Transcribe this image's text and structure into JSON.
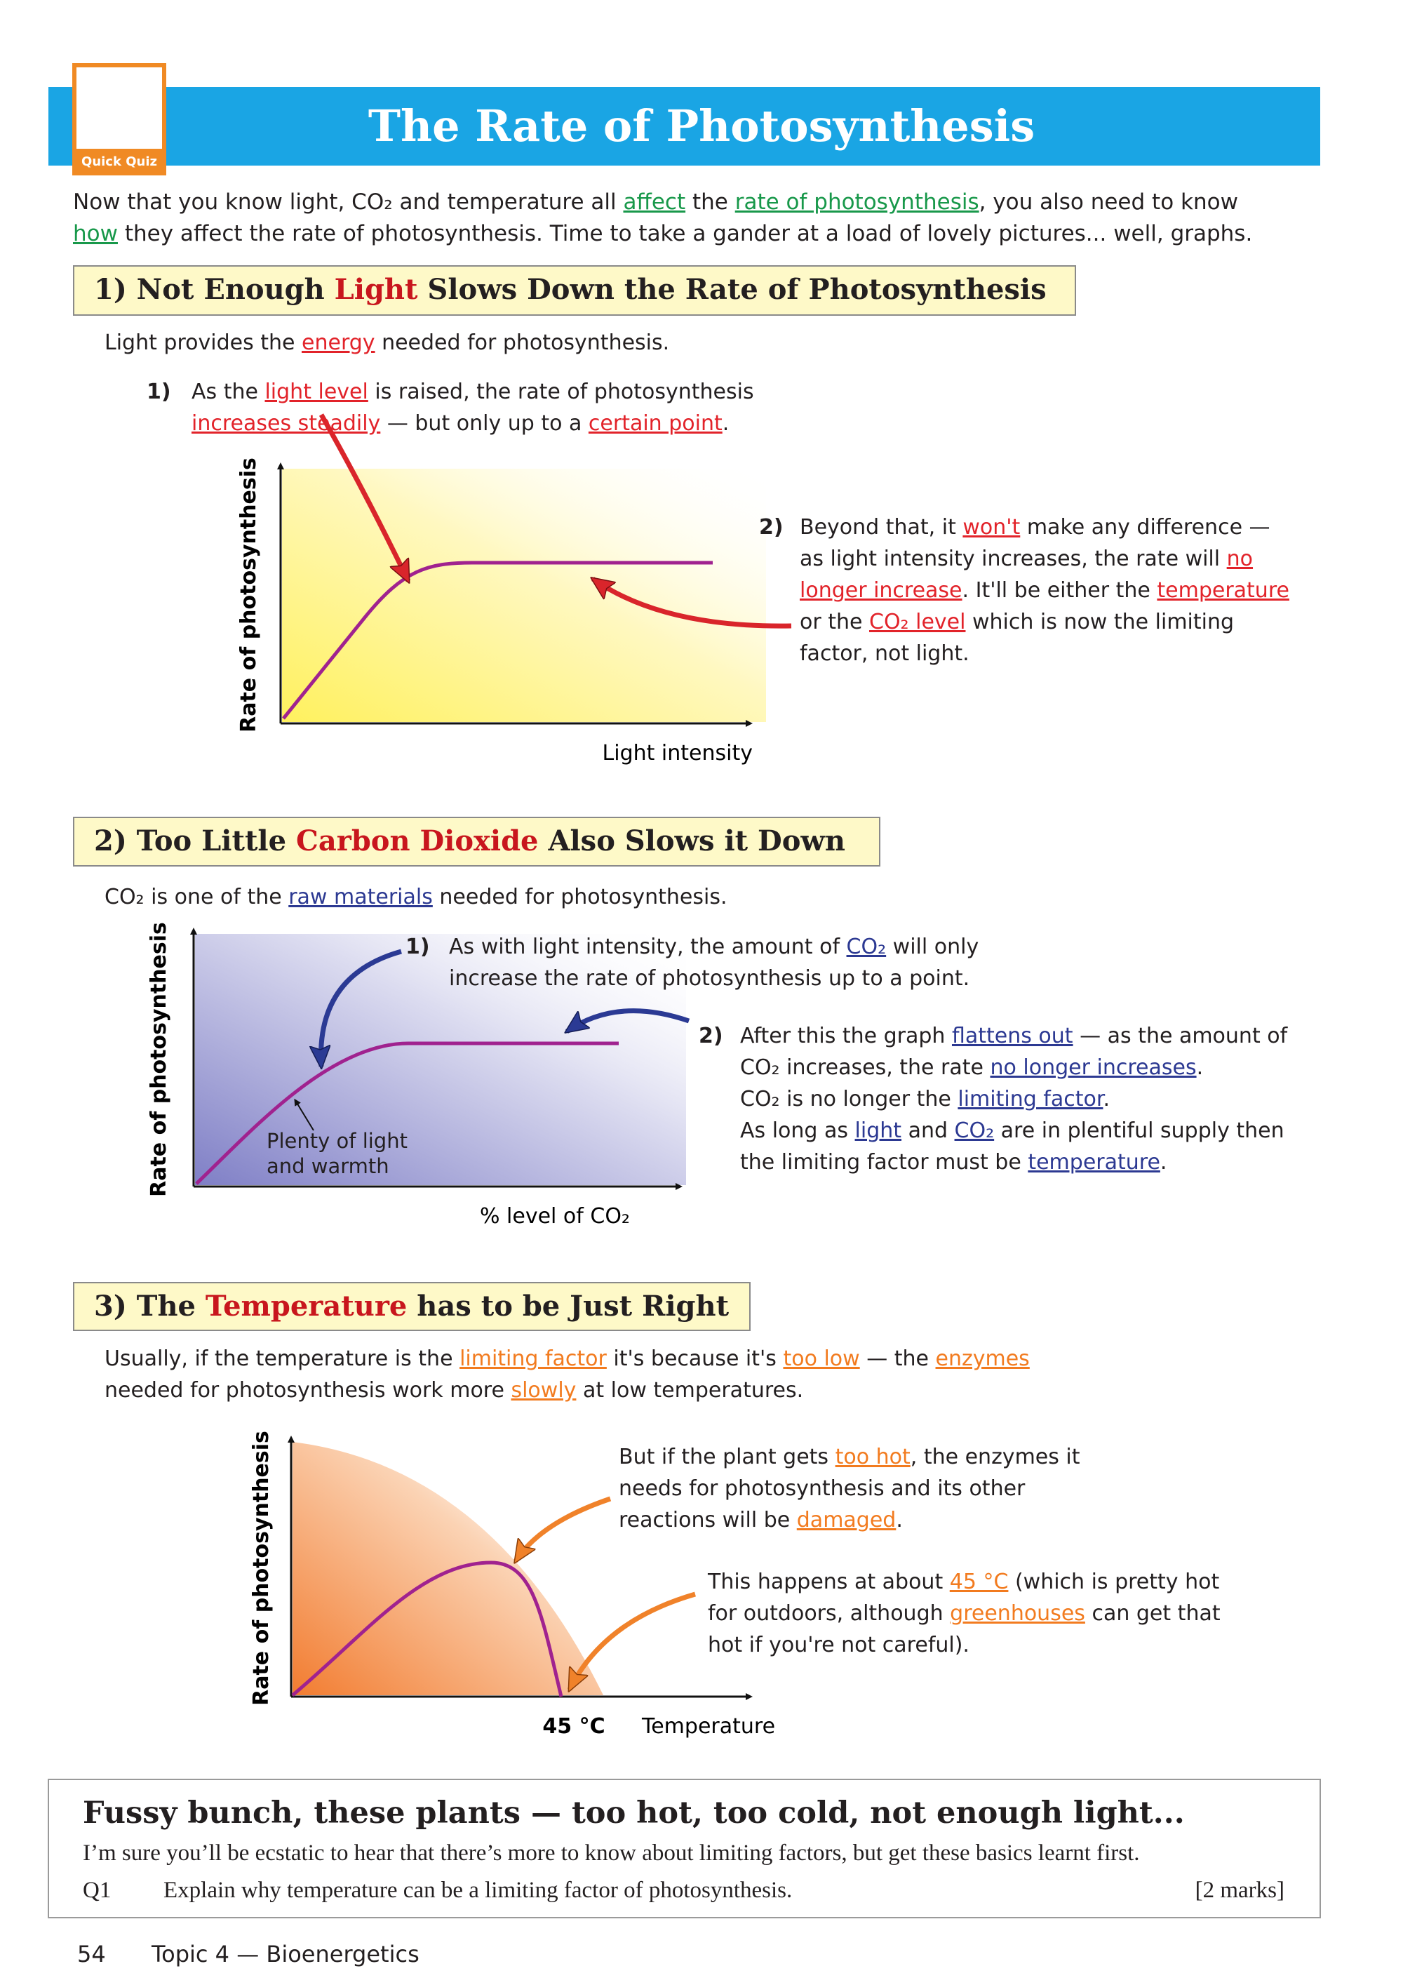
{
  "header": {
    "badge": "Quick Quiz",
    "title": "The Rate of Photosynthesis"
  },
  "intro": [
    "Now that you know light, CO₂ and temperature all ",
    "affect",
    " the ",
    "rate of photosynthesis",
    ", you also need to know ",
    "how",
    " they affect the rate of photosynthesis.  Time to take a gander at a load of lovely pictures... well, graphs."
  ],
  "sections": [
    {
      "heading": [
        "1) Not Enough ",
        "Light",
        " Slows Down the Rate of Photosynthesis"
      ],
      "lead": [
        "Light provides the ",
        "energy",
        " needed for photosynthesis."
      ],
      "points": [
        {
          "number": "1)",
          "text": [
            "As the ",
            "light level",
            " is raised, the rate of photosynthesis",
            "increases steadily",
            " — but only up to a ",
            "certain point",
            "."
          ]
        },
        {
          "number": "2)",
          "text": [
            "Beyond that, it ",
            "won't",
            " make any difference — as light intensity increases, the rate will ",
            "no longer increase",
            ".  It'll be either the ",
            "temperature",
            " or the ",
            "CO₂ level",
            " which is now the limiting factor, not light."
          ]
        }
      ],
      "graph": {
        "y_label": "Rate of photosynthesis",
        "x_label": "Light intensity"
      }
    },
    {
      "heading": [
        "2) Too Little ",
        "Carbon Dioxide",
        " Also Slows it Down"
      ],
      "lead": [
        "CO₂ is one of the ",
        "raw materials",
        " needed for photosynthesis."
      ],
      "points": [
        {
          "number": "1)",
          "text": [
            "As with light intensity, the amount of ",
            "CO₂",
            " will only increase the rate of photosynthesis up to a point."
          ]
        },
        {
          "number": "2)",
          "text": [
            "After this the graph ",
            "flattens out",
            " — as the amount of CO₂ increases, the rate ",
            "no longer increases",
            ".",
            "CO₂ is no longer the ",
            "limiting factor",
            ".",
            "As long as ",
            "light",
            " and ",
            "CO₂",
            " are in plentiful supply then the limiting factor must be ",
            "temperature",
            "."
          ]
        }
      ],
      "graph": {
        "y_label": "Rate of photosynthesis",
        "x_label": "% level of CO₂",
        "annotation": "Plenty of light and warmth"
      }
    },
    {
      "heading": [
        "3) The ",
        "Temperature",
        " has to be Just Right"
      ],
      "lead": [
        "Usually, if the temperature is the ",
        "limiting factor",
        " it's because it's ",
        "too low",
        " — the ",
        "enzymes",
        "needed for photosynthesis work more ",
        "slowly",
        " at low temperatures."
      ],
      "notes": [
        [
          "But if the plant gets ",
          "too hot",
          ", the enzymes it needs for photosynthesis and its other reactions will be ",
          "damaged",
          "."
        ],
        [
          "This happens at about ",
          "45 °C",
          " (which is pretty hot for outdoors, although ",
          "greenhouses",
          " can get that hot if you're not careful)."
        ]
      ],
      "graph": {
        "y_label": "Rate of photosynthesis",
        "x_label": "Temperature",
        "x_tick": "45 °C"
      }
    }
  ],
  "summary": {
    "heading": "Fussy bunch, these plants — too hot, too cold, not enough light...",
    "text": "I’m sure you’ll be ecstatic to hear that there’s more to know about limiting factors, but get these basics learnt first.",
    "question": {
      "number": "Q1",
      "text": "Explain why temperature can be a limiting factor of photosynthesis.",
      "marks": "[2 marks]"
    }
  },
  "footer": {
    "page_number": "54",
    "topic": "Topic 4 — Bioenergetics"
  }
}
